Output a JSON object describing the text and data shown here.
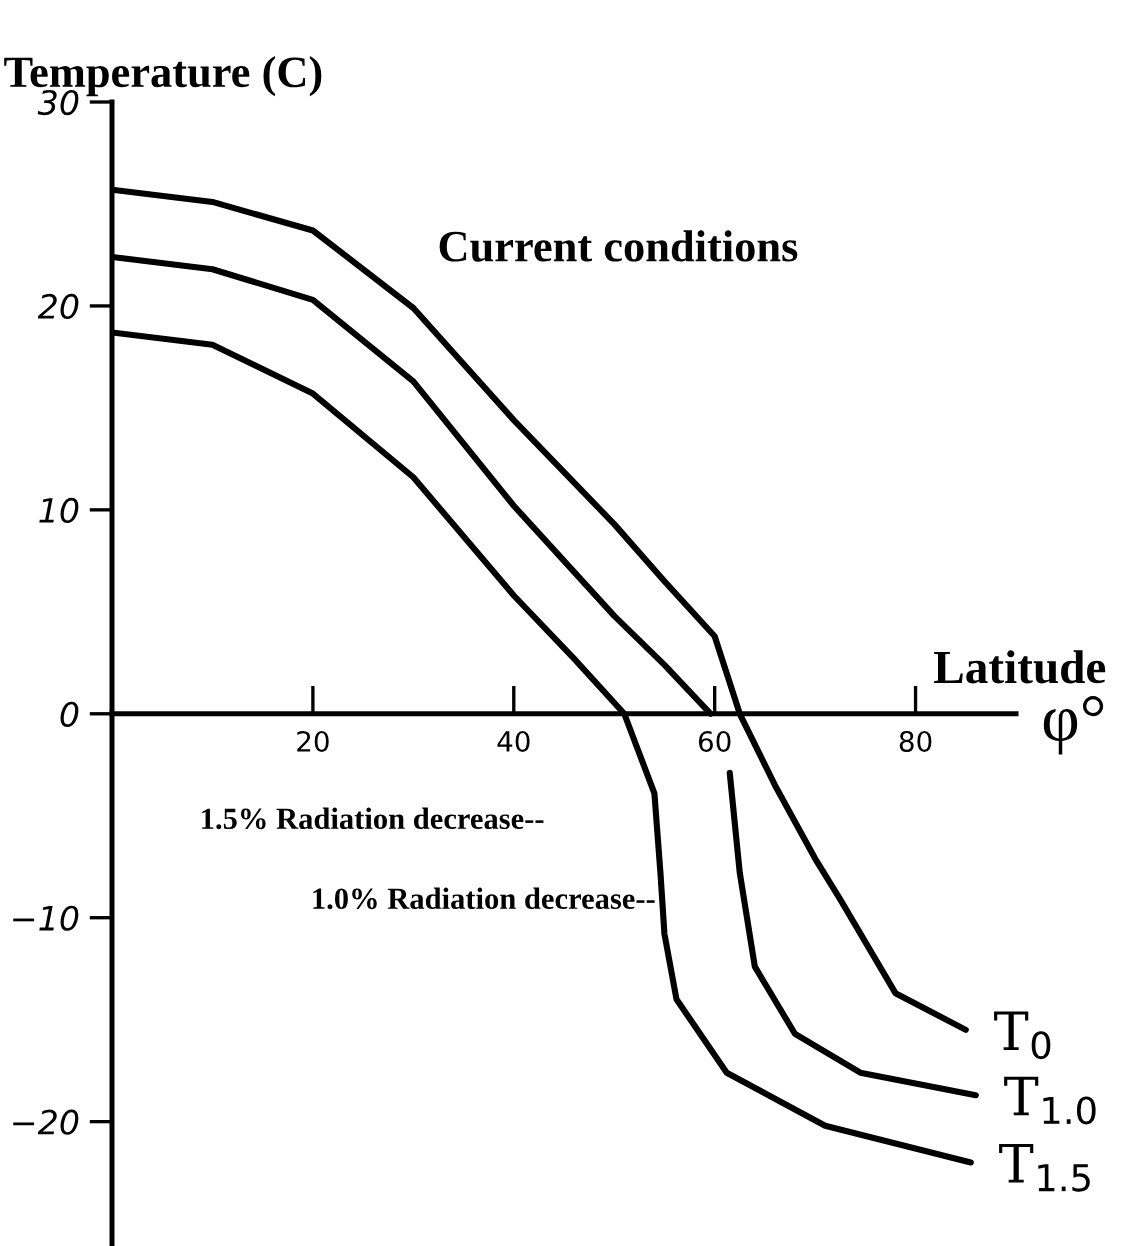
{
  "chart_data": {
    "type": "line",
    "ylabel": "Temperature (C)",
    "xlabel": "Latitude",
    "xlim": [
      0,
      90
    ],
    "ylim": [
      -26,
      30
    ],
    "xticks": [
      20,
      40,
      60,
      80
    ],
    "yticks": [
      30,
      20,
      10,
      0,
      -10,
      -20
    ],
    "grid": false,
    "marker": "none",
    "line_style": "solid",
    "annotations": [
      "Current conditions",
      "φ°",
      "1.5% Radiation decrease--",
      "1.0% Radiation decrease--"
    ],
    "series": [
      {
        "name": "T$_{0}$",
        "color": "#000000",
        "x": [
          0,
          10,
          20,
          30,
          40,
          50,
          55,
          60,
          62.5,
          66,
          70,
          72.5,
          78,
          85
        ],
        "values": [
          25.7,
          25.1,
          23.7,
          19.9,
          14.4,
          9.3,
          6.5,
          3.8,
          0,
          -3.5,
          -7.1,
          -9.1,
          -13.7,
          -15.5
        ]
      },
      {
        "name": "T$_{1.0}$",
        "color": "#000000",
        "x": [
          0,
          10,
          20,
          30,
          40,
          50,
          55,
          59.6,
          60.5,
          61.5,
          62.5,
          64,
          68,
          74.5,
          86
        ],
        "values": [
          22.4,
          21.8,
          20.3,
          16.3,
          10.2,
          4.8,
          2.4,
          0,
          null,
          -2.9,
          -7.8,
          -12.4,
          -15.7,
          -17.6,
          -18.7
        ]
      },
      {
        "name": "T$_{1.5}$",
        "color": "#000000",
        "x": [
          0,
          10,
          20,
          30,
          40,
          46,
          51,
          54,
          54.6,
          55,
          56.2,
          61.2,
          71,
          85.5
        ],
        "values": [
          18.7,
          18.1,
          15.7,
          11.6,
          5.8,
          2.7,
          0,
          -3.9,
          -7.8,
          -10.8,
          -14,
          -17.6,
          -20.2,
          -22
        ]
      }
    ]
  }
}
